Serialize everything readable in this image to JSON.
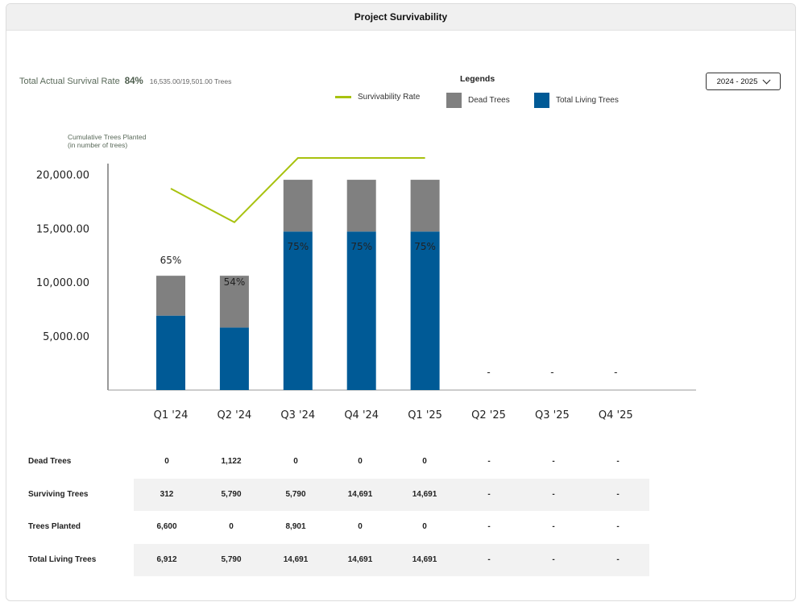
{
  "header": {
    "title": "Project Survivability"
  },
  "summary": {
    "label": "Total Actual Survival Rate",
    "percent": "84%",
    "ratio": "16,535.00/19,501.00 Trees"
  },
  "legend": {
    "title": "Legends",
    "items": [
      {
        "label": "Survivability Rate",
        "color": "#a8c20f"
      },
      {
        "label": "Dead Trees",
        "color": "#808080"
      },
      {
        "label": "Total Living Trees",
        "color": "#005a96"
      }
    ]
  },
  "dropdown": {
    "value": "2024 - 2025",
    "icon": "chevron-down-icon"
  },
  "chart_data": {
    "type": "bar",
    "stacked": true,
    "ylabel": [
      "Cumulative Trees Planted",
      "(in number of trees)"
    ],
    "ylim": [
      0,
      21000
    ],
    "yticks": [
      5000,
      10000,
      15000,
      20000
    ],
    "ytick_labels": [
      "5,000.00",
      "10,000.00",
      "15,000.00",
      "20,000.00"
    ],
    "categories": [
      "Q1 '24",
      "Q2 '24",
      "Q3 '24",
      "Q4 '24",
      "Q1 '25",
      "Q2 '25",
      "Q3 '25",
      "Q4 '25"
    ],
    "series": [
      {
        "name": "Total Living Trees",
        "color": "#005a96",
        "values": [
          6900,
          5800,
          14700,
          14700,
          14700,
          null,
          null,
          null
        ]
      },
      {
        "name": "Dead Trees",
        "color": "#808080",
        "values": [
          3700,
          4800,
          4800,
          4800,
          4800,
          null,
          null,
          null
        ]
      }
    ],
    "line": {
      "name": "Survivability Rate",
      "color": "#a8c20f",
      "values_percent": [
        65,
        54,
        75,
        75,
        75,
        null,
        null,
        null
      ],
      "labels": [
        "65%",
        "54%",
        "75%",
        "75%",
        "75%",
        "-",
        "-",
        "-"
      ]
    }
  },
  "table": {
    "rows": [
      {
        "label": "Dead Trees",
        "shaded": false,
        "values": [
          "0",
          "1,122",
          "0",
          "0",
          "0",
          "-",
          "-",
          "-"
        ]
      },
      {
        "label": "Surviving Trees",
        "shaded": true,
        "values": [
          "312",
          "5,790",
          "5,790",
          "14,691",
          "14,691",
          "-",
          "-",
          "-"
        ]
      },
      {
        "label": "Trees Planted",
        "shaded": false,
        "values": [
          "6,600",
          "0",
          "8,901",
          "0",
          "0",
          "-",
          "-",
          "-"
        ]
      },
      {
        "label": "Total Living Trees",
        "shaded": true,
        "values": [
          "6,912",
          "5,790",
          "14,691",
          "14,691",
          "14,691",
          "-",
          "-",
          "-"
        ]
      }
    ]
  }
}
